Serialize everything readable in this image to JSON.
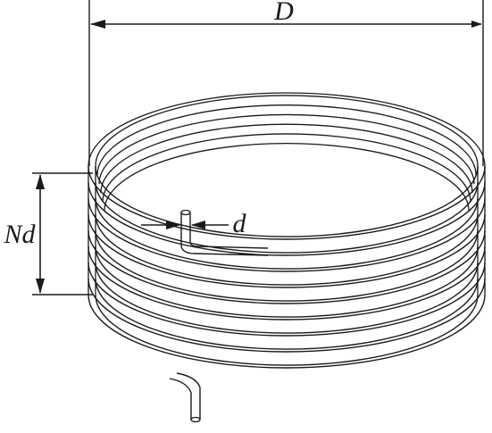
{
  "labels": {
    "diameter": "D",
    "height": "Nd",
    "wire": "d"
  },
  "style": {
    "stroke": "#1a1a1a",
    "background": "#ffffff"
  }
}
